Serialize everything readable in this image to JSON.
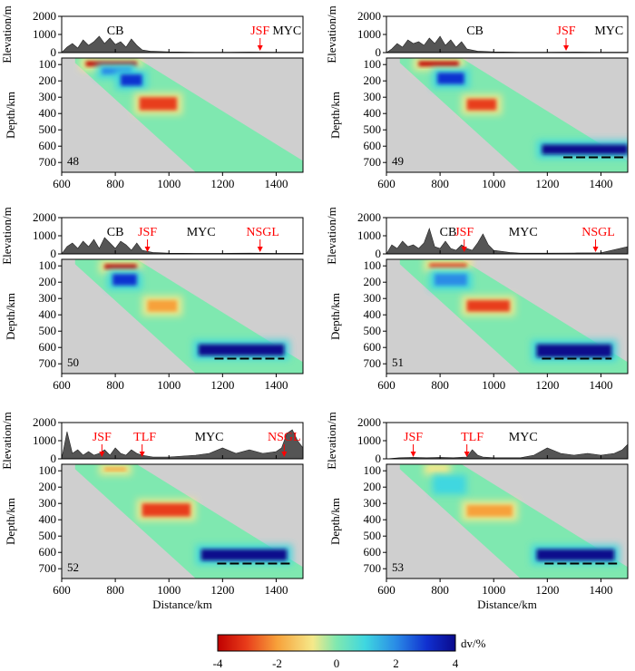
{
  "figure": {
    "colorbar": {
      "label": "dv/%",
      "ticks": [
        "-4",
        "-2",
        "0",
        "2",
        "4"
      ],
      "range": [
        -4,
        4
      ],
      "colors": [
        "#c00000",
        "#e83c1a",
        "#f7a13a",
        "#f5e98a",
        "#7fe8b0",
        "#3fd7e0",
        "#2a8be6",
        "#1030d0",
        "#0a0a8c"
      ]
    },
    "colors": {
      "fault_label": "#ff0000",
      "terrain": "#555555",
      "nodata": "#cfcfcf",
      "ridge_line": "#000000"
    },
    "labels": {
      "elevation_axis": "Elevation/m",
      "depth_axis": "Depth/km",
      "distance_axis": "Distance/km"
    },
    "elevation_ticks": [
      "2000",
      "1000",
      "0"
    ],
    "depth_ticks": [
      "100",
      "200",
      "300",
      "400",
      "500",
      "600",
      "700"
    ],
    "distance_ticks": [
      "600",
      "800",
      "1000",
      "1200",
      "1400"
    ]
  },
  "chart_data": [
    {
      "type": "heatmap",
      "id": "48",
      "panel_label": "48",
      "xlim": [
        600,
        1500
      ],
      "ylim_depth": [
        60,
        760
      ],
      "ylim_elev": [
        0,
        2000
      ],
      "places": [
        {
          "name": "CB",
          "x": 800,
          "color": "black"
        },
        {
          "name": "JSF",
          "x": 1340,
          "color": "red"
        },
        {
          "name": "MYC",
          "x": 1440,
          "color": "black"
        }
      ],
      "fault_arrows": [
        1340
      ],
      "terrain": [
        [
          600,
          0
        ],
        [
          620,
          300
        ],
        [
          640,
          500
        ],
        [
          660,
          250
        ],
        [
          680,
          700
        ],
        [
          700,
          400
        ],
        [
          720,
          600
        ],
        [
          740,
          900
        ],
        [
          760,
          500
        ],
        [
          780,
          800
        ],
        [
          800,
          450
        ],
        [
          820,
          600
        ],
        [
          840,
          300
        ],
        [
          860,
          750
        ],
        [
          880,
          400
        ],
        [
          900,
          150
        ],
        [
          930,
          80
        ],
        [
          1000,
          40
        ],
        [
          1100,
          20
        ],
        [
          1200,
          20
        ],
        [
          1300,
          30
        ],
        [
          1400,
          20
        ],
        [
          1500,
          20
        ]
      ],
      "anomalies": [
        {
          "x": [
            690,
            880
          ],
          "z": [
            80,
            110
          ],
          "dv": -4
        },
        {
          "x": [
            750,
            860
          ],
          "z": [
            120,
            160
          ],
          "dv": 1.5
        },
        {
          "x": [
            820,
            900
          ],
          "z": [
            160,
            230
          ],
          "dv": 2.5
        },
        {
          "x": [
            890,
            1030
          ],
          "z": [
            300,
            380
          ],
          "dv": -3.5
        }
      ],
      "ridge": null
    },
    {
      "type": "heatmap",
      "id": "49",
      "panel_label": "49",
      "xlim": [
        600,
        1500
      ],
      "ylim_depth": [
        60,
        760
      ],
      "ylim_elev": [
        0,
        2000
      ],
      "places": [
        {
          "name": "CB",
          "x": 930,
          "color": "black"
        },
        {
          "name": "JSF",
          "x": 1270,
          "color": "red"
        },
        {
          "name": "MYC",
          "x": 1430,
          "color": "black"
        }
      ],
      "fault_arrows": [
        1270
      ],
      "terrain": [
        [
          600,
          0
        ],
        [
          620,
          200
        ],
        [
          640,
          500
        ],
        [
          660,
          300
        ],
        [
          680,
          700
        ],
        [
          700,
          500
        ],
        [
          720,
          600
        ],
        [
          740,
          400
        ],
        [
          760,
          800
        ],
        [
          780,
          500
        ],
        [
          800,
          900
        ],
        [
          820,
          400
        ],
        [
          840,
          700
        ],
        [
          860,
          300
        ],
        [
          880,
          600
        ],
        [
          900,
          200
        ],
        [
          940,
          80
        ],
        [
          1000,
          40
        ],
        [
          1100,
          20
        ],
        [
          1200,
          20
        ],
        [
          1300,
          30
        ],
        [
          1400,
          20
        ],
        [
          1500,
          20
        ]
      ],
      "anomalies": [
        {
          "x": [
            720,
            870
          ],
          "z": [
            80,
            110
          ],
          "dv": -4
        },
        {
          "x": [
            790,
            890
          ],
          "z": [
            150,
            220
          ],
          "dv": 3
        },
        {
          "x": [
            900,
            1010
          ],
          "z": [
            310,
            380
          ],
          "dv": -3
        },
        {
          "x": [
            1180,
            1500
          ],
          "z": [
            590,
            650
          ],
          "dv": 3.5
        }
      ],
      "ridge": [
        1260,
        1490,
        668
      ]
    },
    {
      "type": "heatmap",
      "id": "50",
      "panel_label": "50",
      "xlim": [
        600,
        1500
      ],
      "ylim_depth": [
        60,
        760
      ],
      "ylim_elev": [
        0,
        2000
      ],
      "places": [
        {
          "name": "CB",
          "x": 800,
          "color": "black"
        },
        {
          "name": "JSF",
          "x": 920,
          "color": "red"
        },
        {
          "name": "MYC",
          "x": 1120,
          "color": "black"
        },
        {
          "name": "NSGL",
          "x": 1350,
          "color": "red"
        }
      ],
      "fault_arrows": [
        920,
        1340
      ],
      "terrain": [
        [
          600,
          0
        ],
        [
          620,
          400
        ],
        [
          640,
          600
        ],
        [
          660,
          300
        ],
        [
          680,
          700
        ],
        [
          700,
          400
        ],
        [
          720,
          800
        ],
        [
          740,
          300
        ],
        [
          760,
          900
        ],
        [
          780,
          600
        ],
        [
          800,
          300
        ],
        [
          820,
          700
        ],
        [
          840,
          500
        ],
        [
          860,
          200
        ],
        [
          880,
          600
        ],
        [
          900,
          200
        ],
        [
          940,
          80
        ],
        [
          1000,
          40
        ],
        [
          1100,
          30
        ],
        [
          1200,
          30
        ],
        [
          1300,
          40
        ],
        [
          1400,
          30
        ],
        [
          1500,
          30
        ]
      ],
      "anomalies": [
        {
          "x": [
            760,
            880
          ],
          "z": [
            90,
            120
          ],
          "dv": -4
        },
        {
          "x": [
            790,
            880
          ],
          "z": [
            150,
            220
          ],
          "dv": 2.5
        },
        {
          "x": [
            920,
            1030
          ],
          "z": [
            310,
            380
          ],
          "dv": -2.5
        },
        {
          "x": [
            1110,
            1430
          ],
          "z": [
            580,
            650
          ],
          "dv": 3.5
        }
      ],
      "ridge": [
        1170,
        1430,
        668
      ]
    },
    {
      "type": "heatmap",
      "id": "51",
      "panel_label": "51",
      "xlim": [
        600,
        1500
      ],
      "ylim_depth": [
        60,
        760
      ],
      "ylim_elev": [
        0,
        2000
      ],
      "places": [
        {
          "name": "CB",
          "x": 830,
          "color": "black"
        },
        {
          "name": "JSF",
          "x": 890,
          "color": "red"
        },
        {
          "name": "MYC",
          "x": 1110,
          "color": "black"
        },
        {
          "name": "NSGL",
          "x": 1390,
          "color": "red"
        }
      ],
      "fault_arrows": [
        890,
        1380
      ],
      "terrain": [
        [
          600,
          0
        ],
        [
          620,
          500
        ],
        [
          640,
          300
        ],
        [
          660,
          700
        ],
        [
          680,
          400
        ],
        [
          700,
          500
        ],
        [
          720,
          300
        ],
        [
          740,
          600
        ],
        [
          760,
          1400
        ],
        [
          780,
          400
        ],
        [
          800,
          300
        ],
        [
          820,
          700
        ],
        [
          840,
          300
        ],
        [
          860,
          200
        ],
        [
          880,
          500
        ],
        [
          900,
          300
        ],
        [
          920,
          200
        ],
        [
          940,
          600
        ],
        [
          960,
          1100
        ],
        [
          980,
          500
        ],
        [
          1000,
          200
        ],
        [
          1060,
          80
        ],
        [
          1100,
          40
        ],
        [
          1200,
          40
        ],
        [
          1300,
          50
        ],
        [
          1400,
          60
        ],
        [
          1500,
          400
        ]
      ],
      "anomalies": [
        {
          "x": [
            760,
            900
          ],
          "z": [
            85,
            110
          ],
          "dv": -3
        },
        {
          "x": [
            780,
            900
          ],
          "z": [
            150,
            220
          ],
          "dv": 1.5
        },
        {
          "x": [
            900,
            1060
          ],
          "z": [
            310,
            380
          ],
          "dv": -3
        },
        {
          "x": [
            1160,
            1440
          ],
          "z": [
            580,
            660
          ],
          "dv": 3.5
        }
      ],
      "ridge": [
        1180,
        1440,
        668
      ]
    },
    {
      "type": "heatmap",
      "id": "52",
      "panel_label": "52",
      "xlim": [
        600,
        1500
      ],
      "ylim_depth": [
        60,
        760
      ],
      "ylim_elev": [
        0,
        2000
      ],
      "places": [
        {
          "name": "JSF",
          "x": 750,
          "color": "red"
        },
        {
          "name": "TLF",
          "x": 910,
          "color": "red"
        },
        {
          "name": "MYC",
          "x": 1150,
          "color": "black"
        },
        {
          "name": "NSGL",
          "x": 1430,
          "color": "red"
        }
      ],
      "fault_arrows": [
        750,
        900,
        1430
      ],
      "terrain": [
        [
          600,
          0
        ],
        [
          620,
          1500
        ],
        [
          640,
          300
        ],
        [
          660,
          500
        ],
        [
          680,
          200
        ],
        [
          700,
          400
        ],
        [
          720,
          200
        ],
        [
          740,
          300
        ],
        [
          760,
          500
        ],
        [
          780,
          200
        ],
        [
          800,
          600
        ],
        [
          820,
          300
        ],
        [
          840,
          200
        ],
        [
          860,
          500
        ],
        [
          880,
          300
        ],
        [
          900,
          200
        ],
        [
          940,
          100
        ],
        [
          1000,
          100
        ],
        [
          1100,
          200
        ],
        [
          1150,
          300
        ],
        [
          1200,
          600
        ],
        [
          1250,
          300
        ],
        [
          1300,
          500
        ],
        [
          1350,
          300
        ],
        [
          1400,
          400
        ],
        [
          1420,
          600
        ],
        [
          1440,
          1400
        ],
        [
          1460,
          1600
        ],
        [
          1480,
          1000
        ],
        [
          1500,
          600
        ]
      ],
      "anomalies": [
        {
          "x": [
            760,
            840
          ],
          "z": [
            80,
            100
          ],
          "dv": -2
        },
        {
          "x": [
            900,
            1080
          ],
          "z": [
            300,
            380
          ],
          "dv": -3
        },
        {
          "x": [
            1120,
            1440
          ],
          "z": [
            580,
            650
          ],
          "dv": 4
        }
      ],
      "ridge": [
        1180,
        1460,
        668
      ]
    },
    {
      "type": "heatmap",
      "id": "53",
      "panel_label": "53",
      "xlim": [
        600,
        1500
      ],
      "ylim_depth": [
        60,
        760
      ],
      "ylim_elev": [
        0,
        2000
      ],
      "places": [
        {
          "name": "JSF",
          "x": 700,
          "color": "red"
        },
        {
          "name": "TLF",
          "x": 920,
          "color": "red"
        },
        {
          "name": "MYC",
          "x": 1110,
          "color": "black"
        }
      ],
      "fault_arrows": [
        700,
        900
      ],
      "terrain": [
        [
          600,
          0
        ],
        [
          650,
          60
        ],
        [
          700,
          80
        ],
        [
          750,
          60
        ],
        [
          800,
          80
        ],
        [
          850,
          60
        ],
        [
          900,
          100
        ],
        [
          920,
          500
        ],
        [
          940,
          200
        ],
        [
          960,
          100
        ],
        [
          1000,
          60
        ],
        [
          1100,
          60
        ],
        [
          1150,
          200
        ],
        [
          1200,
          600
        ],
        [
          1250,
          300
        ],
        [
          1300,
          200
        ],
        [
          1350,
          300
        ],
        [
          1400,
          200
        ],
        [
          1450,
          300
        ],
        [
          1480,
          500
        ],
        [
          1500,
          800
        ]
      ],
      "anomalies": [
        {
          "x": [
            760,
            820
          ],
          "z": [
            80,
            100
          ],
          "dv": -1.5
        },
        {
          "x": [
            790,
            880
          ],
          "z": [
            150,
            220
          ],
          "dv": 1
        },
        {
          "x": [
            900,
            1070
          ],
          "z": [
            310,
            380
          ],
          "dv": -2.5
        },
        {
          "x": [
            1160,
            1450
          ],
          "z": [
            580,
            650
          ],
          "dv": 3.5
        }
      ],
      "ridge": [
        1190,
        1460,
        668
      ]
    }
  ]
}
